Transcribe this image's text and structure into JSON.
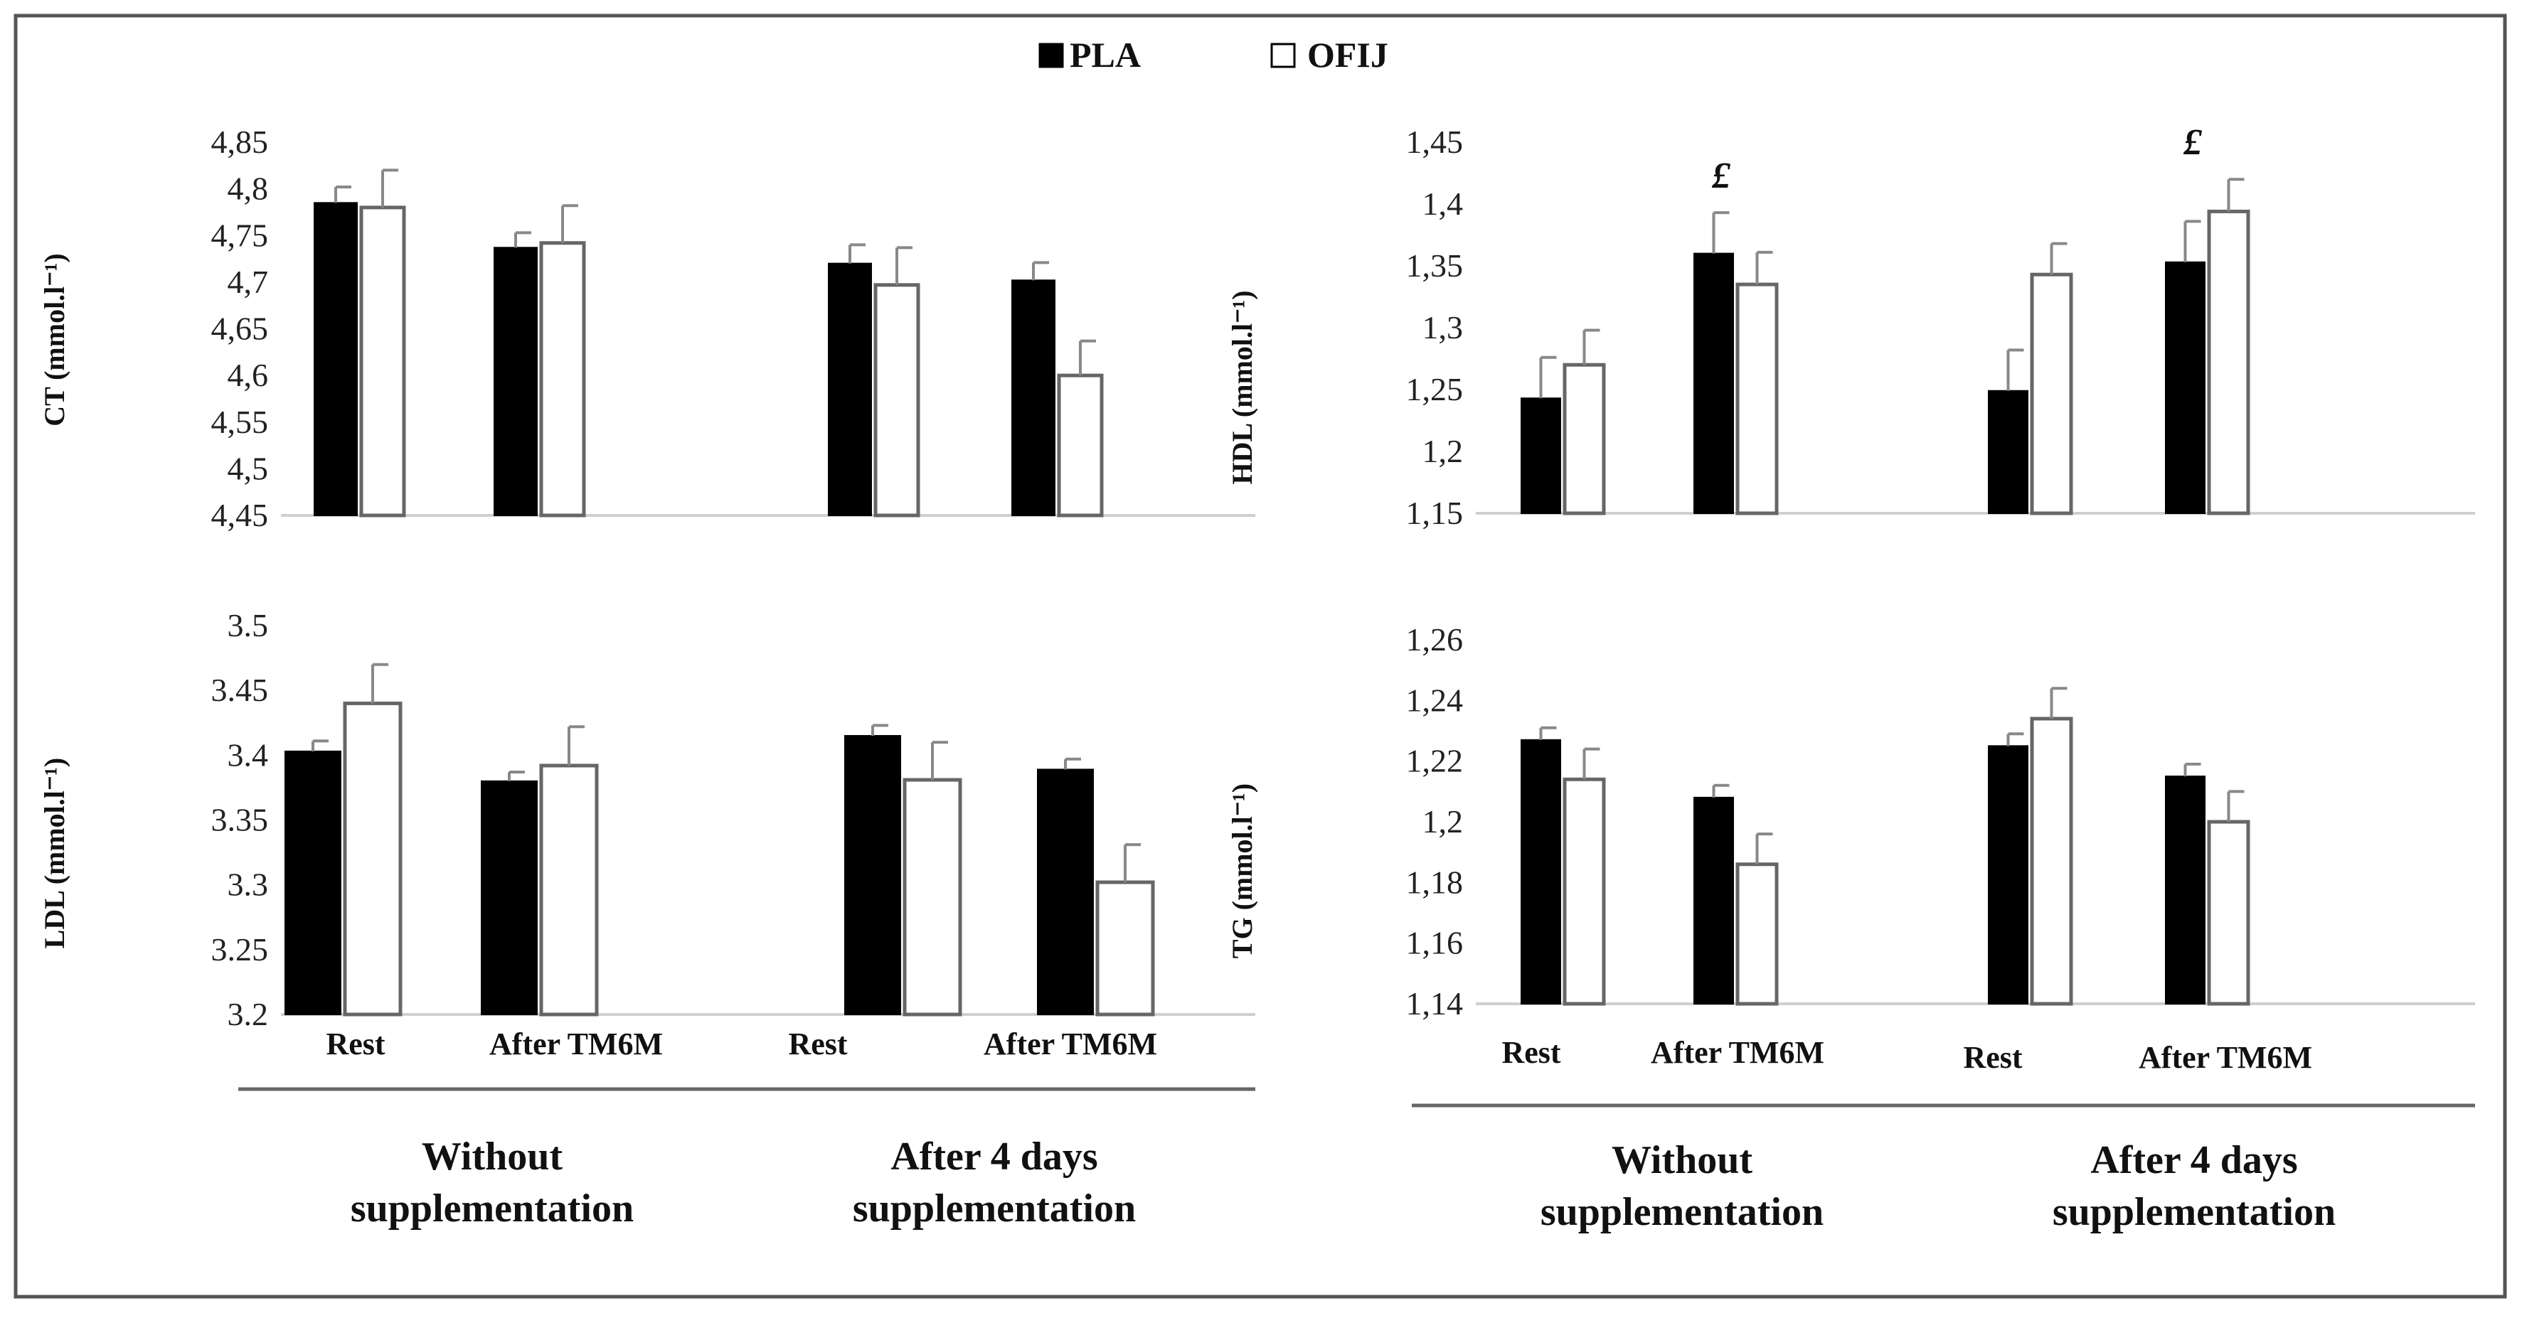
{
  "legend": [
    {
      "label": "PLA",
      "color": "#000000"
    },
    {
      "label": "OFIJ",
      "color": "#ffffff"
    }
  ],
  "colors": {
    "pla": "#000000",
    "ofij": "#ffffff",
    "outline": "#666666"
  },
  "chart_data": [
    {
      "type": "bar",
      "id": "ct",
      "ylabel": "CT (mmol.l⁻¹)",
      "ylim": [
        4.45,
        4.85
      ],
      "yticks": [
        4.45,
        4.5,
        4.55,
        4.6,
        4.65,
        4.7,
        4.75,
        4.8,
        4.85
      ],
      "ytick_labels": [
        "4,45",
        "4,5",
        "4,55",
        "4,6",
        "4,65",
        "4,7",
        "4,75",
        "4,8",
        "4,85"
      ],
      "categories": [
        "Rest",
        "After TM6M",
        "Rest",
        "After TM6M"
      ],
      "series": [
        {
          "name": "PLA",
          "values": [
            4.785,
            4.737,
            4.72,
            4.702
          ],
          "errors": [
            0.017,
            0.016,
            0.02,
            0.019
          ]
        },
        {
          "name": "OFIJ",
          "values": [
            4.78,
            4.742,
            4.697,
            4.6
          ],
          "errors": [
            0.04,
            0.04,
            0.04,
            0.037
          ]
        }
      ],
      "markers": []
    },
    {
      "type": "bar",
      "id": "hdl",
      "ylabel": "HDL (mmol.l⁻¹)",
      "ylim": [
        1.15,
        1.45
      ],
      "yticks": [
        1.15,
        1.2,
        1.25,
        1.3,
        1.35,
        1.4,
        1.45
      ],
      "ytick_labels": [
        "1,15",
        "1,2",
        "1,25",
        "1,3",
        "1,35",
        "1,4",
        "1,45"
      ],
      "categories": [
        "Rest",
        "After TM6M",
        "Rest",
        "After TM6M"
      ],
      "series": [
        {
          "name": "PLA",
          "values": [
            1.243,
            1.36,
            1.249,
            1.353
          ],
          "errors": [
            0.033,
            0.033,
            0.033,
            0.033
          ]
        },
        {
          "name": "OFIJ",
          "values": [
            1.27,
            1.335,
            1.343,
            1.394
          ],
          "errors": [
            0.028,
            0.026,
            0.025,
            0.026
          ]
        }
      ],
      "markers": [
        {
          "category_index": 1,
          "symbol": "£"
        },
        {
          "category_index": 3,
          "symbol": "£"
        }
      ]
    },
    {
      "type": "bar",
      "id": "ldl",
      "ylabel": "LDL (mmol.l⁻¹)",
      "ylim": [
        3.2,
        3.5
      ],
      "yticks": [
        3.2,
        3.25,
        3.3,
        3.35,
        3.4,
        3.45,
        3.5
      ],
      "ytick_labels": [
        "3.2",
        "3.25",
        "3.3",
        "3.35",
        "3.4",
        "3.45",
        "3.5"
      ],
      "categories": [
        "Rest",
        "After TM6M",
        "Rest",
        "After TM6M"
      ],
      "series": [
        {
          "name": "PLA",
          "values": [
            3.403,
            3.38,
            3.415,
            3.389
          ],
          "errors": [
            0.008,
            0.007,
            0.008,
            0.008
          ]
        },
        {
          "name": "OFIJ",
          "values": [
            3.44,
            3.392,
            3.381,
            3.302
          ],
          "errors": [
            0.03,
            0.03,
            0.029,
            0.029
          ]
        }
      ],
      "markers": []
    },
    {
      "type": "bar",
      "id": "tg",
      "ylabel": "TG (mmol.l⁻¹)",
      "ylim": [
        1.14,
        1.26
      ],
      "yticks": [
        1.14,
        1.16,
        1.18,
        1.2,
        1.22,
        1.24,
        1.26
      ],
      "ytick_labels": [
        "1,14",
        "1,16",
        "1,18",
        "1,2",
        "1,22",
        "1,24",
        "1,26"
      ],
      "categories": [
        "Rest",
        "After TM6M",
        "Rest",
        "After TM6M"
      ],
      "series": [
        {
          "name": "PLA",
          "values": [
            1.227,
            1.208,
            1.225,
            1.215
          ],
          "errors": [
            0.004,
            0.004,
            0.004,
            0.004
          ]
        },
        {
          "name": "OFIJ",
          "values": [
            1.214,
            1.186,
            1.234,
            1.2
          ],
          "errors": [
            0.01,
            0.01,
            0.01,
            0.01
          ]
        }
      ],
      "markers": []
    }
  ],
  "groups": {
    "left": [
      {
        "line1": "Without",
        "line2": "supplementation"
      },
      {
        "line1": "After 4 days",
        "line2": "supplementation"
      }
    ],
    "right": [
      {
        "line1": "Without",
        "line2": "supplementation"
      },
      {
        "line1": "After 4 days",
        "line2": "supplementation"
      }
    ]
  }
}
